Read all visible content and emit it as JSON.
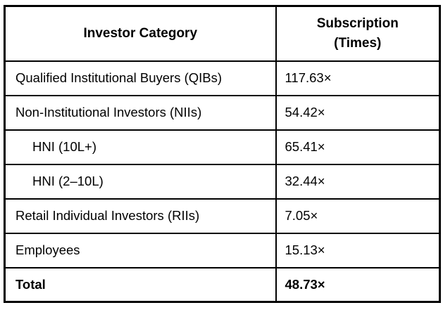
{
  "table": {
    "headers": {
      "category": "Investor Category",
      "subscription": "Subscription\n(Times)"
    },
    "rows": [
      {
        "category": "Qualified Institutional Buyers (QIBs)",
        "value": "117.63×"
      },
      {
        "category": "Non-Institutional Investors (NIIs)",
        "value": "54.42×"
      },
      {
        "category": "HNI (10L+)",
        "value": "65.41×"
      },
      {
        "category": "HNI (2–10L)",
        "value": "32.44×"
      },
      {
        "category": "Retail Individual Investors (RIIs)",
        "value": "7.05×"
      },
      {
        "category": "Employees",
        "value": "15.13×"
      },
      {
        "category": "Total",
        "value": "48.73×"
      }
    ],
    "colors": {
      "border": "#000000",
      "background": "#ffffff",
      "text": "#000000"
    }
  },
  "chart_data": {
    "type": "table",
    "title": "",
    "columns": [
      "Investor Category",
      "Subscription (Times)"
    ],
    "rows": [
      [
        "Qualified Institutional Buyers (QIBs)",
        "117.63×"
      ],
      [
        "Non-Institutional Investors (NIIs)",
        "54.42×"
      ],
      [
        "HNI (10L+)",
        "65.41×"
      ],
      [
        "HNI (2–10L)",
        "32.44×"
      ],
      [
        "Retail Individual Investors (RIIs)",
        "7.05×"
      ],
      [
        "Employees",
        "15.13×"
      ],
      [
        "Total",
        "48.73×"
      ]
    ],
    "notes": {
      "indented_rows": [
        "HNI (10L+)",
        "HNI (2–10L)"
      ],
      "bold_rows": [
        "Total"
      ],
      "unit": "times subscribed (×)"
    }
  }
}
